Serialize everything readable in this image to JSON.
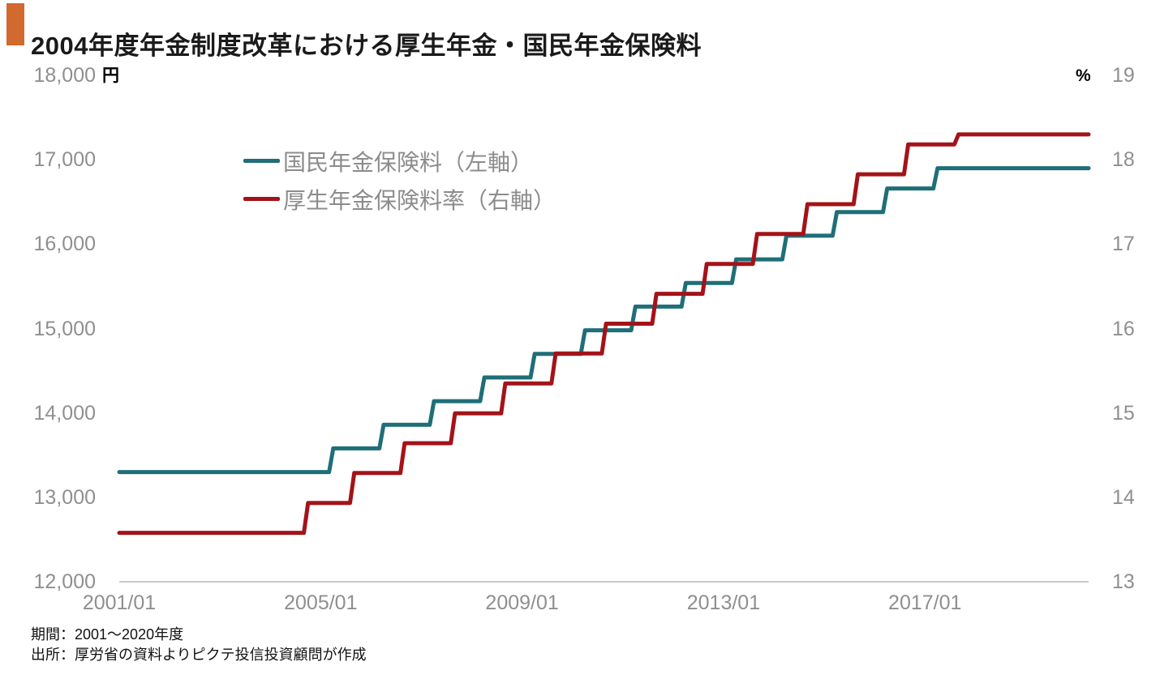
{
  "header": {
    "title": "2004年度年金制度改革における厚生年金・国民年金保険料"
  },
  "colors": {
    "accent": "#d2692e",
    "axis_line": "#c9c9c9",
    "axis_text": "#8f8f8f",
    "legend_text": "#8c8c8c",
    "series_teal": "#1f6e78",
    "series_red": "#a31319"
  },
  "chart_data": {
    "type": "line",
    "subtype": "step",
    "title": "2004年度年金制度改革における厚生年金・国民年金保険料",
    "x_axis": {
      "start": "2001/01",
      "end": "2020/04",
      "tick_labels": [
        "2001/01",
        "2005/01",
        "2009/01",
        "2013/01",
        "2017/01"
      ],
      "grid": false
    },
    "left_axis": {
      "unit": "円",
      "min": 12000,
      "max": 18000,
      "tick_labels": [
        "12,000",
        "13,000",
        "14,000",
        "15,000",
        "16,000",
        "17,000",
        "18,000"
      ]
    },
    "right_axis": {
      "unit": "%",
      "min": 13,
      "max": 19,
      "tick_labels": [
        "13",
        "14",
        "15",
        "16",
        "17",
        "18",
        "19"
      ]
    },
    "legend_position": "top-left-inside",
    "series": [
      {
        "id": "national-pension",
        "name": "国民年金保険料（左軸）",
        "axis": "left",
        "unit": "円",
        "color": "#1f6e78",
        "steps": [
          [
            "2001/01",
            13300
          ],
          [
            "2005/04",
            13580
          ],
          [
            "2006/04",
            13860
          ],
          [
            "2007/04",
            14140
          ],
          [
            "2008/04",
            14420
          ],
          [
            "2009/04",
            14700
          ],
          [
            "2010/04",
            14980
          ],
          [
            "2011/04",
            15260
          ],
          [
            "2012/04",
            15540
          ],
          [
            "2013/04",
            15820
          ],
          [
            "2014/04",
            16100
          ],
          [
            "2015/04",
            16380
          ],
          [
            "2016/04",
            16660
          ],
          [
            "2017/04",
            16900
          ]
        ]
      },
      {
        "id": "welfare-pension-rate",
        "name": "厚生年金保険料率（右軸）",
        "axis": "right",
        "unit": "%",
        "color": "#a31319",
        "steps": [
          [
            "2001/01",
            13.58
          ],
          [
            "2004/10",
            13.934
          ],
          [
            "2005/09",
            14.288
          ],
          [
            "2006/09",
            14.642
          ],
          [
            "2007/09",
            14.996
          ],
          [
            "2008/09",
            15.35
          ],
          [
            "2009/09",
            15.704
          ],
          [
            "2010/09",
            16.058
          ],
          [
            "2011/09",
            16.412
          ],
          [
            "2012/09",
            16.766
          ],
          [
            "2013/09",
            17.12
          ],
          [
            "2014/09",
            17.474
          ],
          [
            "2015/09",
            17.828
          ],
          [
            "2016/09",
            18.182
          ],
          [
            "2017/09",
            18.3
          ]
        ]
      }
    ]
  },
  "footer": {
    "period": "期間：2001〜2020年度",
    "source": "出所：厚労省の資料よりピクテ投信投資顧問が作成"
  }
}
